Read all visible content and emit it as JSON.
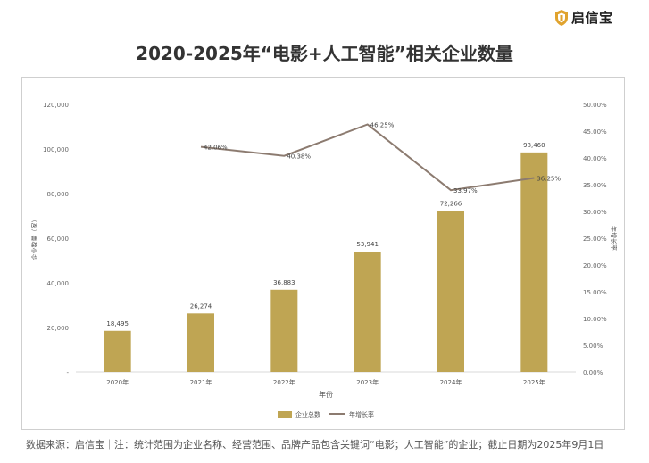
{
  "brand": {
    "name": "启信宝",
    "accent": "#E0A32E"
  },
  "chart_data": {
    "type": "bar",
    "title": "2020-2025年“电影+人工智能”相关企业数量",
    "xlabel": "年份",
    "ylabel": "企业数量（家）",
    "y2label": "年增长率",
    "categories": [
      "2020年",
      "2021年",
      "2022年",
      "2023年",
      "2024年",
      "2025年"
    ],
    "series": [
      {
        "name": "企业总数",
        "type": "bar",
        "color": "#BFA553",
        "values": [
          18495,
          26274,
          36883,
          53941,
          72266,
          98460
        ],
        "labels": [
          "18,495",
          "26,274",
          "36,883",
          "53,941",
          "72,266",
          "98,460"
        ]
      },
      {
        "name": "年增长率",
        "type": "line",
        "axis": "right",
        "color": "#8C7B70",
        "values": [
          null,
          42.06,
          40.38,
          46.25,
          33.97,
          36.25
        ],
        "labels": [
          "",
          "42.06%",
          "40.38%",
          "46.25%",
          "33.97%",
          "36.25%"
        ]
      }
    ],
    "ylim": [
      0,
      120000
    ],
    "y_ticks": [
      "-",
      "20,000",
      "40,000",
      "60,000",
      "80,000",
      "100,000",
      "120,000"
    ],
    "y2lim": [
      0,
      50
    ],
    "y2_ticks": [
      "0.00%",
      "5.00%",
      "10.00%",
      "15.00%",
      "20.00%",
      "25.00%",
      "30.00%",
      "35.00%",
      "40.00%",
      "45.00%",
      "50.00%"
    ],
    "legend_position": "bottom",
    "grid": false
  },
  "source": "数据来源：启信宝｜注：统计范围为企业名称、经营范围、品牌产品包含关键词“电影；人工智能”的企业；截止日期为2025年9月1日"
}
